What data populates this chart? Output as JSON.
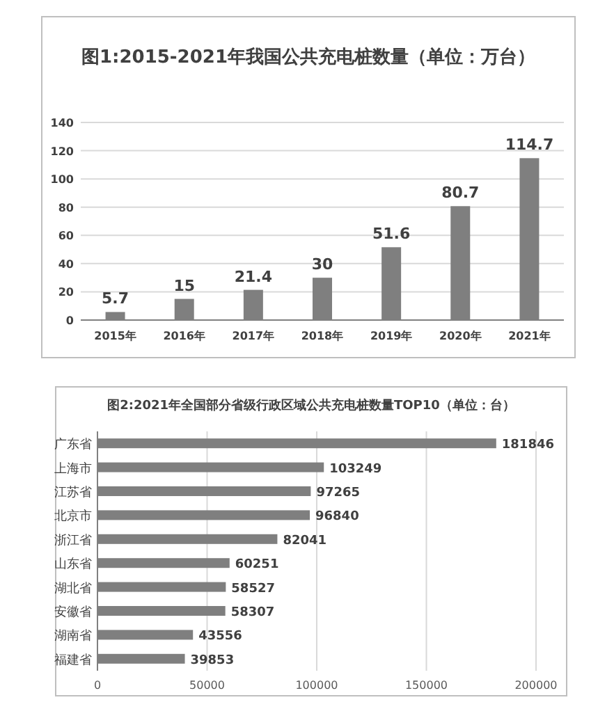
{
  "chart_data": [
    {
      "type": "bar",
      "title": "图1:2015-2021年我国公共充电桩数量（单位：万台）",
      "categories": [
        "2015年",
        "2016年",
        "2017年",
        "2018年",
        "2019年",
        "2020年",
        "2021年"
      ],
      "values": [
        5.7,
        15,
        21.4,
        30,
        51.6,
        80.7,
        114.7
      ],
      "color": "#7f7f7f",
      "ylim": [
        0,
        140
      ],
      "yticks": [
        0,
        20,
        40,
        60,
        80,
        100,
        120,
        140
      ],
      "grid": "y",
      "data_labels": true
    },
    {
      "type": "bar",
      "orientation": "horizontal",
      "title": "图2:2021年全国部分省级行政区域公共充电桩数量TOP10（单位：台）",
      "categories": [
        "广东省",
        "上海市",
        "江苏省",
        "北京市",
        "浙江省",
        "山东省",
        "湖北省",
        "安徽省",
        "湖南省",
        "福建省"
      ],
      "values": [
        181846,
        103249,
        97265,
        96840,
        82041,
        60251,
        58527,
        58307,
        43556,
        39853
      ],
      "color": "#7f7f7f",
      "xlim": [
        0,
        200000
      ],
      "xticks": [
        0,
        50000,
        100000,
        150000,
        200000
      ],
      "grid": "x",
      "data_labels": true
    }
  ]
}
